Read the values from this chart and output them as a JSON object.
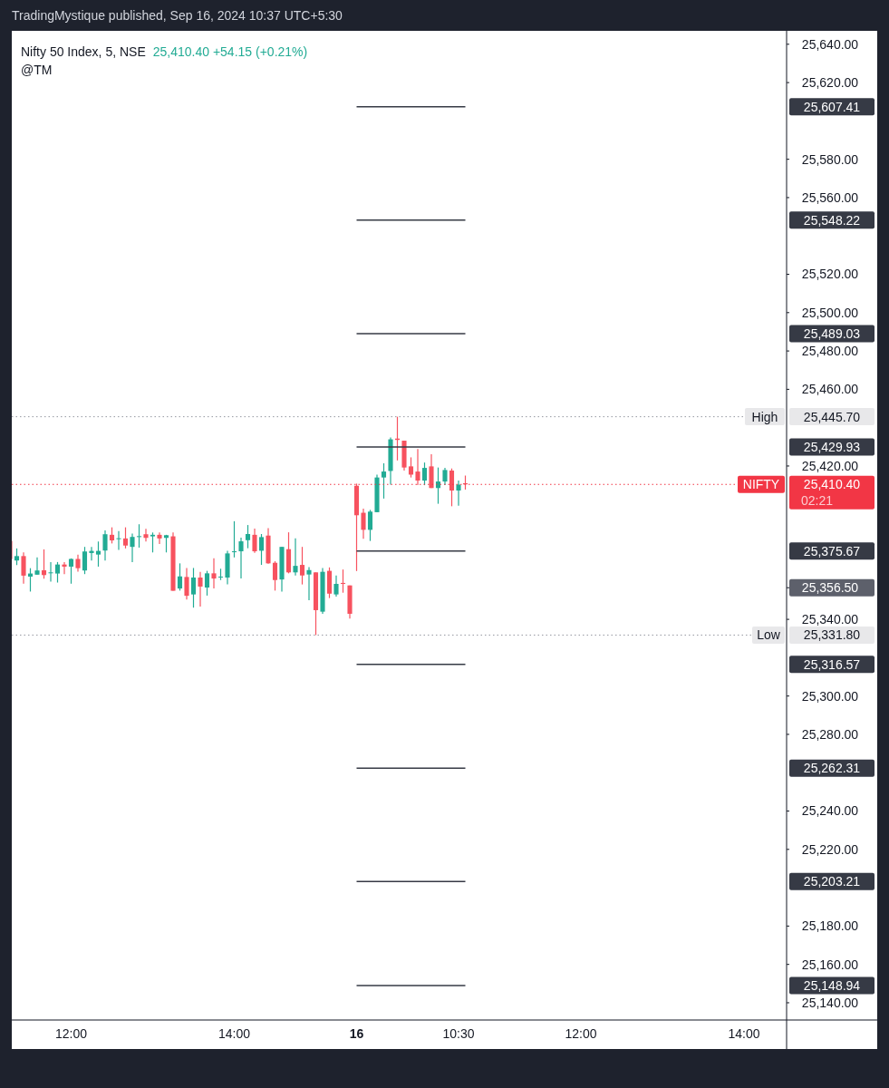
{
  "chart_data": {
    "type": "candlestick",
    "title": "Nifty 50 Index, 5, NSE",
    "subtitle": "25,410.40  +54.15 (+0.21%)",
    "annotations": [
      "TradingMystique published, Sep 16, 2024 10:37 UTC+5:30",
      "@TM",
      "02:21"
    ],
    "categories": [
      null,
      null,
      null,
      null,
      null,
      null,
      null,
      null,
      null,
      "12:00",
      null,
      null,
      null,
      null,
      null,
      null,
      null,
      null,
      null,
      null,
      null,
      null,
      null,
      null,
      null,
      null,
      null,
      null,
      null,
      null,
      null,
      null,
      null,
      "14:00",
      null,
      null,
      null,
      null,
      null,
      null,
      null,
      null,
      null,
      null,
      null,
      null,
      null,
      null,
      null,
      null,
      null,
      "16",
      null,
      null,
      null,
      null,
      null,
      null,
      null,
      null,
      null,
      null,
      null,
      null,
      null,
      null,
      "10:30",
      null,
      null,
      null,
      null,
      null,
      null,
      null,
      null,
      null,
      null,
      null,
      null,
      null,
      null,
      null,
      null,
      null,
      "12:00",
      null,
      null,
      null,
      null,
      null,
      null,
      null,
      null,
      null,
      null,
      null,
      null,
      null,
      null,
      null,
      null,
      null,
      null,
      null,
      null,
      null,
      null,
      null,
      "14:00",
      null,
      null,
      null,
      null,
      null,
      null
    ],
    "ohlc": [
      [
        25380.9,
        25380.9,
        25371.5,
        25371.5
      ],
      [
        25370.7,
        25377.0,
        25368.3,
        25373.0
      ],
      [
        25373.0,
        25374.9,
        25358.6,
        25362.8
      ],
      [
        25362.3,
        25366.7,
        25354.5,
        25363.9
      ],
      [
        25363.3,
        25372.3,
        25363.3,
        25365.5
      ],
      [
        25365.6,
        25376.5,
        25361.2,
        25363.1
      ],
      [
        25364.2,
        25369.9,
        25359.7,
        25364.5
      ],
      [
        25363.9,
        25369.9,
        25359.2,
        25368.6
      ],
      [
        25368.6,
        25369.9,
        25363.6,
        25367.5
      ],
      [
        25367.5,
        25371.8,
        25358.6,
        25371.5
      ],
      [
        25371.5,
        25373.7,
        25364.9,
        25366.7
      ],
      [
        25365.5,
        25377.8,
        25363.6,
        25375.4
      ],
      [
        25374.6,
        25377.8,
        25370.7,
        25375.7
      ],
      [
        25373.8,
        25380.6,
        25367.5,
        25375.7
      ],
      [
        25375.9,
        25386.4,
        25370.7,
        25384.4
      ],
      [
        25384.1,
        25388.0,
        25379.6,
        25381.2
      ],
      [
        25381.9,
        25386.0,
        25376.2,
        25382.3
      ],
      [
        25382.2,
        25388.0,
        25377.0,
        25378.5
      ],
      [
        25377.8,
        25384.8,
        25369.9,
        25383.0
      ],
      [
        25383.1,
        25389.6,
        25377.4,
        25383.4
      ],
      [
        25384.4,
        25387.2,
        25380.6,
        25382.5
      ],
      [
        25383.3,
        25385.3,
        25374.9,
        25384.1
      ],
      [
        25384.1,
        25385.3,
        25379.3,
        25382.2
      ],
      [
        25382.5,
        25384.1,
        25374.9,
        25383.9
      ],
      [
        25383.3,
        25385.3,
        25354.9,
        25354.9
      ],
      [
        25356.1,
        25369.2,
        25355.0,
        25362.4
      ],
      [
        25362.1,
        25366.8,
        25350.3,
        25352.3
      ],
      [
        25353.0,
        25366.8,
        25346.1,
        25361.8
      ],
      [
        25361.8,
        25364.8,
        25346.7,
        25357.1
      ],
      [
        25356.6,
        25365.3,
        25352.4,
        25364.0
      ],
      [
        25364.0,
        25371.9,
        25356.1,
        25361.3
      ],
      [
        25362.0,
        25366.4,
        25360.5,
        25362.3
      ],
      [
        25361.8,
        25375.8,
        25358.2,
        25374.4
      ],
      [
        25375.2,
        25391.2,
        25372.3,
        25375.5
      ],
      [
        25375.5,
        25382.6,
        25361.3,
        25380.7
      ],
      [
        25381.3,
        25389.2,
        25377.1,
        25384.5
      ],
      [
        25384.1,
        25387.3,
        25374.7,
        25375.5
      ],
      [
        25375.8,
        25384.5,
        25368.4,
        25382.9
      ],
      [
        25383.7,
        25387.6,
        25369.0,
        25369.2
      ],
      [
        25369.5,
        25370.3,
        25355.0,
        25360.5
      ],
      [
        25360.8,
        25377.8,
        25354.5,
        25377.8
      ],
      [
        25376.6,
        25385.4,
        25364.0,
        25364.5
      ],
      [
        25364.5,
        25382.3,
        25362.9,
        25367.9
      ],
      [
        25368.4,
        25377.8,
        25358.2,
        25362.9
      ],
      [
        25363.4,
        25367.3,
        25350.0,
        25365.7
      ],
      [
        25364.5,
        25364.5,
        25331.8,
        25344.8
      ],
      [
        25344.0,
        25366.8,
        25342.9,
        25364.8
      ],
      [
        25365.3,
        25367.1,
        25351.1,
        25353.4
      ],
      [
        25353.0,
        25362.9,
        25351.9,
        25358.5
      ],
      [
        25359.0,
        25366.0,
        25353.9,
        25358.5
      ],
      [
        25357.7,
        25357.7,
        25340.4,
        25342.9
      ],
      [
        25409.7,
        25410.8,
        25365.2,
        25394.3
      ],
      [
        25395.6,
        25397.8,
        25382.0,
        25386.7
      ],
      [
        25386.7,
        25397.1,
        25380.9,
        25396.2
      ],
      [
        25395.9,
        25415.5,
        25395.9,
        25414.0
      ],
      [
        25414.0,
        25421.4,
        25403.0,
        25417.1
      ],
      [
        25417.4,
        25434.9,
        25410.3,
        25433.9
      ],
      [
        25434.3,
        25445.7,
        25422.9,
        25433.6
      ],
      [
        25433.2,
        25433.2,
        25417.6,
        25419.2
      ],
      [
        25419.8,
        25424.5,
        25414.0,
        25415.5
      ],
      [
        25417.1,
        25428.9,
        25410.0,
        25412.4
      ],
      [
        25412.4,
        25421.8,
        25410.0,
        25419.0
      ],
      [
        25419.8,
        25426.1,
        25408.5,
        25408.5
      ],
      [
        25408.5,
        25419.2,
        25400.3,
        25411.9
      ],
      [
        25411.9,
        25419.0,
        25410.0,
        25417.9
      ],
      [
        25417.6,
        25418.7,
        25399.0,
        25407.2
      ],
      [
        25407.2,
        25412.4,
        25399.3,
        25410.3
      ],
      [
        25411.0,
        25415.0,
        25407.7,
        25410.4
      ],
      null,
      null,
      null,
      null,
      null,
      null,
      null,
      null,
      null,
      null,
      null,
      null,
      null,
      null,
      null,
      null,
      null,
      null,
      null,
      null,
      null,
      null,
      null,
      null,
      null,
      null,
      null,
      null,
      null,
      null,
      null,
      null,
      null,
      null,
      null,
      null,
      null,
      null,
      null,
      null,
      null,
      null,
      null,
      null,
      null,
      null,
      null
    ],
    "colors": [
      "#f7525f",
      "#22ab94",
      "#f7525f",
      "#22ab94",
      "#22ab94",
      "#f7525f",
      "#22ab94",
      "#22ab94",
      "#f7525f",
      "#22ab94",
      "#f7525f",
      "#22ab94",
      "#22ab94",
      "#22ab94",
      "#22ab94",
      "#f7525f",
      "#22ab94",
      "#f7525f",
      "#22ab94",
      "#22ab94",
      "#f7525f",
      "#22ab94",
      "#f7525f",
      "#22ab94",
      "#f7525f",
      "#22ab94",
      "#f7525f",
      "#22ab94",
      "#f7525f",
      "#22ab94",
      "#f7525f",
      "#22ab94",
      "#22ab94",
      "#22ab94",
      "#22ab94",
      "#22ab94",
      "#f7525f",
      "#22ab94",
      "#f7525f",
      "#f7525f",
      "#22ab94",
      "#f7525f",
      "#22ab94",
      "#f7525f",
      "#22ab94",
      "#f7525f",
      "#22ab94",
      "#f7525f",
      "#22ab94",
      "#f7525f",
      "#f7525f",
      "#f7525f",
      "#f7525f",
      "#22ab94",
      "#22ab94",
      "#22ab94",
      "#22ab94",
      "#f7525f",
      "#f7525f",
      "#f7525f",
      "#f7525f",
      "#22ab94",
      "#f7525f",
      "#22ab94",
      "#22ab94",
      "#f7525f",
      "#22ab94",
      "#f7525f",
      null,
      null,
      null,
      null,
      null,
      null,
      null,
      null,
      null,
      null,
      null,
      null,
      null,
      null,
      null,
      null,
      null,
      null,
      null,
      null,
      null,
      null,
      null,
      null,
      null,
      null,
      null,
      null,
      null,
      null,
      null,
      null,
      null,
      null,
      null,
      null,
      null,
      null,
      null,
      null,
      null,
      null,
      null,
      null,
      null,
      null,
      null
    ],
    "ylim": [
      25131,
      25647
    ],
    "yticks": [
      {
        "value": 25140,
        "label": "25,140.00"
      },
      {
        "value": 25148.94,
        "label": "25,148.94"
      },
      {
        "value": 25160,
        "label": "25,160.00"
      },
      {
        "value": 25180,
        "label": "25,180.00"
      },
      {
        "value": 25203.21,
        "label": "25,203.21"
      },
      {
        "value": 25220,
        "label": "25,220.00"
      },
      {
        "value": 25240,
        "label": "25,240.00"
      },
      {
        "value": 25262.31,
        "label": "25,262.31"
      },
      {
        "value": 25280,
        "label": "25,280.00"
      },
      {
        "value": 25300,
        "label": "25,300.00"
      },
      {
        "value": 25316.57,
        "label": "25,316.57"
      },
      {
        "value": 25331.8,
        "label": "25,331.80"
      },
      {
        "value": 25340,
        "label": "25,340.00"
      },
      {
        "value": 25356.5,
        "label": "25,356.50"
      },
      {
        "value": 25375.67,
        "label": "25,375.67"
      },
      {
        "value": 25410.4,
        "label": "25,410.40"
      },
      {
        "value": 25420,
        "label": "25,420.00"
      },
      {
        "value": 25429.93,
        "label": "25,429.93"
      },
      {
        "value": 25445.7,
        "label": "25,445.70"
      },
      {
        "value": 25460,
        "label": "25,460.00"
      },
      {
        "value": 25480,
        "label": "25,480.00"
      },
      {
        "value": 25489.03,
        "label": "25,489.03"
      },
      {
        "value": 25500,
        "label": "25,500.00"
      },
      {
        "value": 25520,
        "label": "25,520.00"
      },
      {
        "value": 25548.22,
        "label": "25,548.22"
      },
      {
        "value": 25560,
        "label": "25,560.00"
      },
      {
        "value": 25580,
        "label": "25,580.00"
      },
      {
        "value": 25607.41,
        "label": "25,607.41"
      },
      {
        "value": 25620,
        "label": "25,620.00"
      },
      {
        "value": 25640,
        "label": "25,640.00"
      }
    ],
    "ref_lines": [
      {
        "axis": "y",
        "value": 25607.41,
        "color": "#363a45",
        "line_style": "solid"
      },
      {
        "axis": "y",
        "value": 25548.22,
        "color": "#363a45",
        "line_style": "solid"
      },
      {
        "axis": "y",
        "value": 25489.03,
        "color": "#363a45",
        "line_style": "solid"
      },
      {
        "axis": "y",
        "value": 25429.93,
        "color": "#363a45",
        "line_style": "solid"
      },
      {
        "axis": "y",
        "value": 25375.67,
        "color": "#363a45",
        "line_style": "solid"
      },
      {
        "axis": "y",
        "value": 25316.57,
        "color": "#363a45",
        "line_style": "solid"
      },
      {
        "axis": "y",
        "value": 25262.31,
        "color": "#363a45",
        "line_style": "solid"
      },
      {
        "axis": "y",
        "value": 25203.21,
        "color": "#363a45",
        "line_style": "solid"
      },
      {
        "axis": "y",
        "value": 25148.94,
        "color": "#363a45",
        "line_style": "solid"
      },
      {
        "axis": "y",
        "value": 25445.7,
        "label": "High",
        "color": "#9598a1",
        "line_style": "dotted"
      },
      {
        "axis": "y",
        "value": 25331.8,
        "label": "Low",
        "color": "#9598a1",
        "line_style": "dotted"
      },
      {
        "axis": "y",
        "value": 25410.4,
        "label": "NIFTY",
        "color": "#f23645",
        "line_style": "dotted"
      }
    ],
    "grid": false
  }
}
